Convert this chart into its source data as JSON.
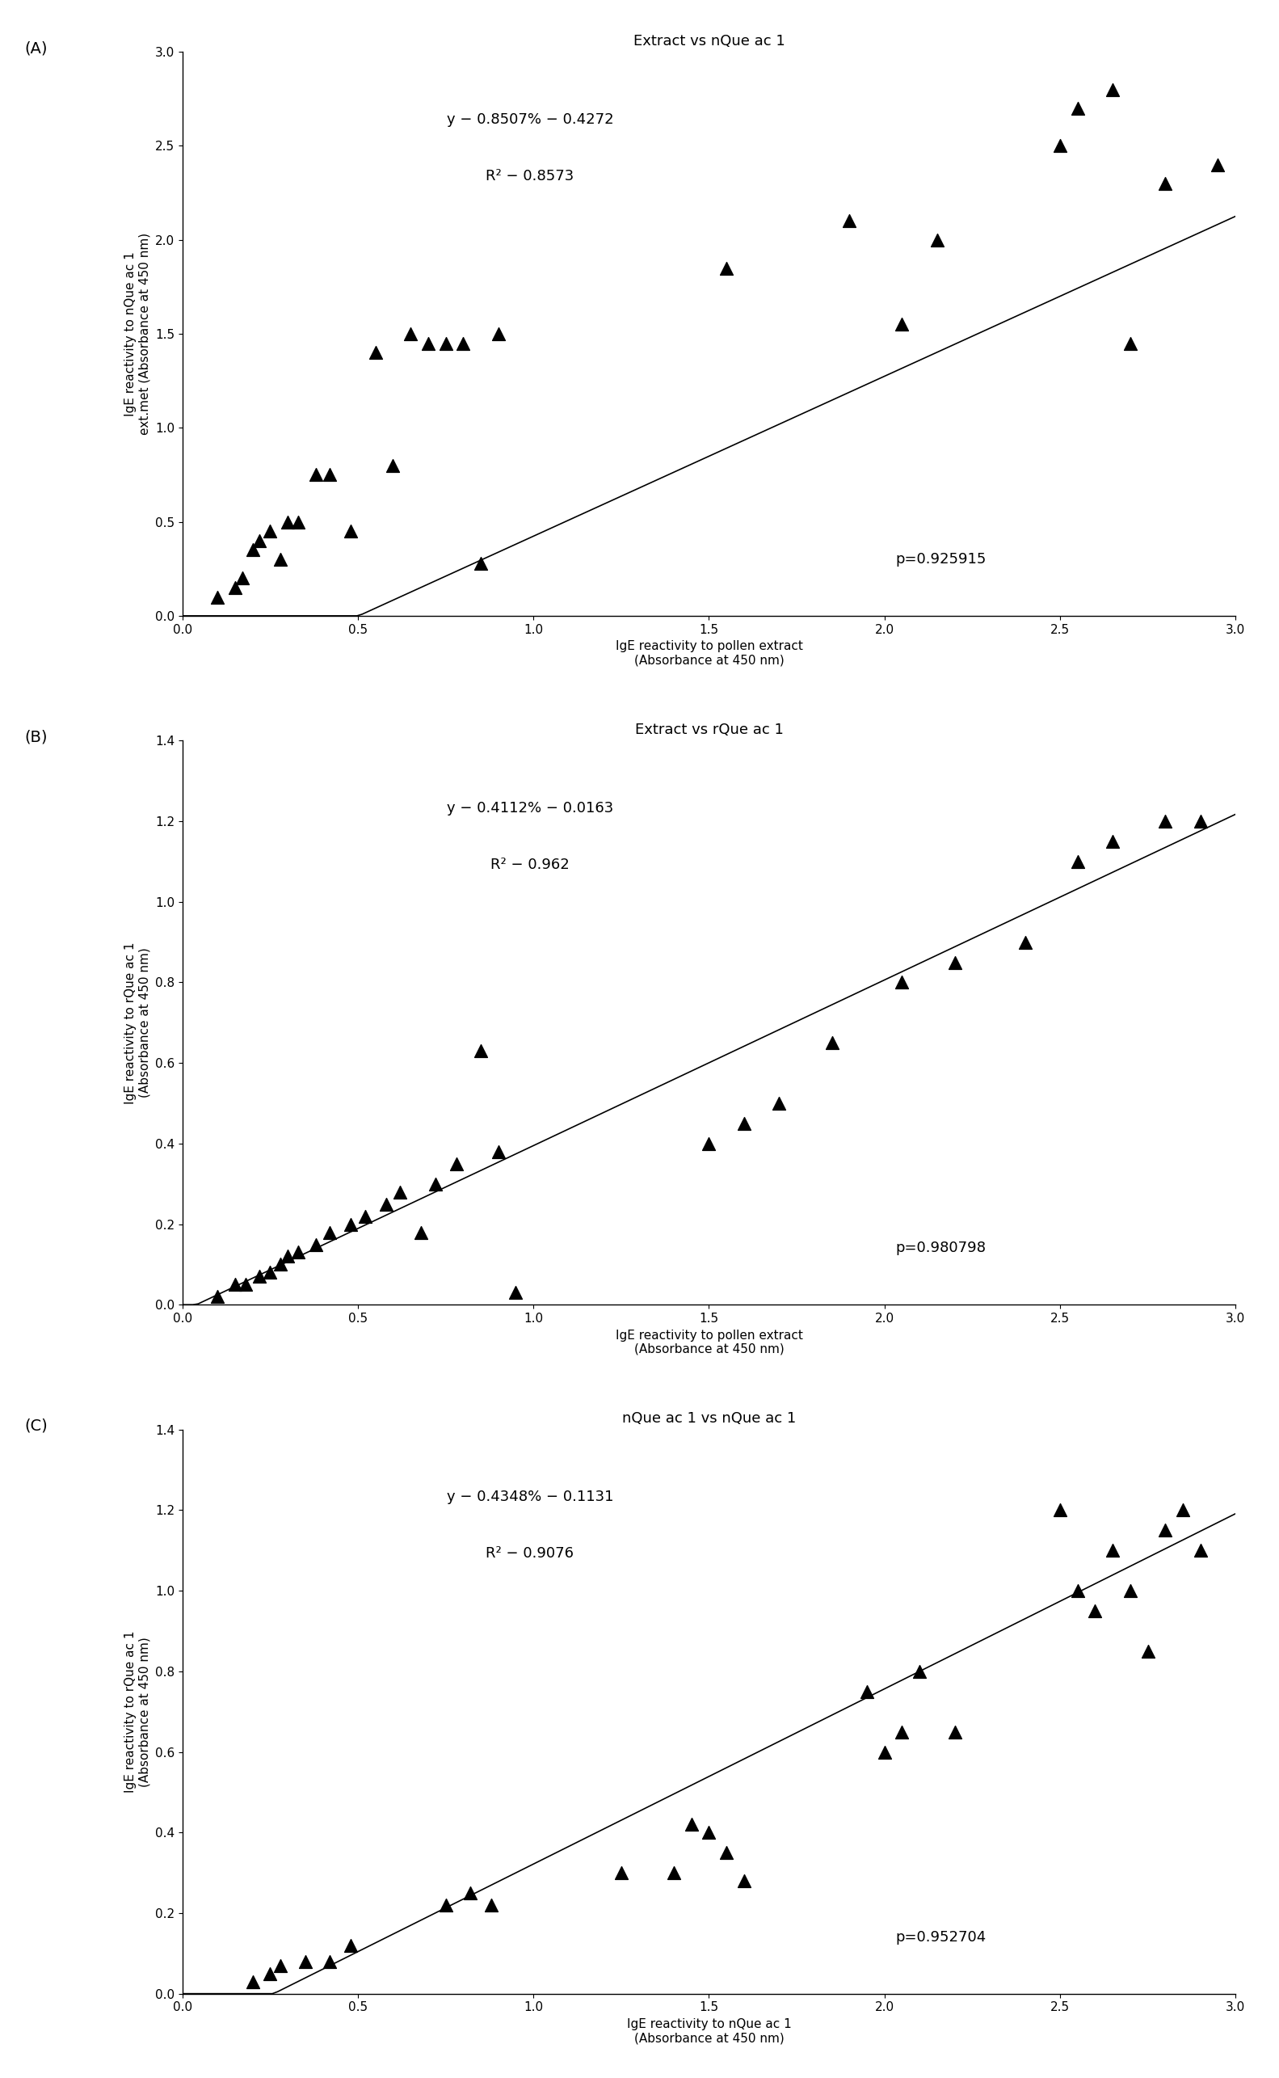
{
  "panel_A": {
    "title": "Extract vs nQue ac 1",
    "xlabel": "IgE reactivity to pollen extract\n(Absorbance at 450 nm)",
    "ylabel": "IgE reactivity to nQue ac 1\next.met (Absorbance at 450 nm)",
    "equation": "y − 0.8507% − 0.4272",
    "r2": "R² − 0.8573",
    "pvalue": "p=0.925915",
    "slope": 0.8507,
    "intercept": -0.4272,
    "xlim": [
      0,
      3
    ],
    "ylim": [
      0,
      3
    ],
    "xticks": [
      0,
      0.5,
      1.0,
      1.5,
      2.0,
      2.5,
      3.0
    ],
    "yticks": [
      0,
      0.5,
      1.0,
      1.5,
      2.0,
      2.5,
      3.0
    ],
    "x_data": [
      0.1,
      0.15,
      0.17,
      0.2,
      0.22,
      0.25,
      0.28,
      0.3,
      0.33,
      0.38,
      0.42,
      0.48,
      0.55,
      0.6,
      0.65,
      0.7,
      0.75,
      0.8,
      0.85,
      0.9,
      1.55,
      1.9,
      2.05,
      2.15,
      2.5,
      2.55,
      2.65,
      2.7,
      2.8,
      2.95
    ],
    "y_data": [
      0.1,
      0.15,
      0.2,
      0.35,
      0.4,
      0.45,
      0.3,
      0.5,
      0.5,
      0.75,
      0.75,
      0.45,
      1.4,
      0.8,
      1.5,
      1.45,
      1.45,
      1.45,
      0.28,
      1.5,
      1.85,
      2.1,
      1.55,
      2.0,
      2.5,
      2.7,
      2.8,
      1.45,
      2.3,
      2.4
    ]
  },
  "panel_B": {
    "title": "Extract vs rQue ac 1",
    "xlabel": "IgE reactivity to pollen extract\n(Absorbance at 450 nm)",
    "ylabel": "IgE reactivity to rQue ac 1\n(Absorbance at 450 nm)",
    "equation": "y − 0.4112% − 0.0163",
    "r2": "R² − 0.962",
    "pvalue": "p=0.980798",
    "slope": 0.4112,
    "intercept": -0.0163,
    "xlim": [
      0,
      3
    ],
    "ylim": [
      0,
      1.4
    ],
    "xticks": [
      0,
      0.5,
      1.0,
      1.5,
      2.0,
      2.5,
      3.0
    ],
    "yticks": [
      0,
      0.2,
      0.4,
      0.6,
      0.8,
      1.0,
      1.2,
      1.4
    ],
    "x_data": [
      0.1,
      0.15,
      0.18,
      0.22,
      0.25,
      0.28,
      0.3,
      0.33,
      0.38,
      0.42,
      0.48,
      0.52,
      0.58,
      0.62,
      0.68,
      0.72,
      0.78,
      0.85,
      0.9,
      0.95,
      1.5,
      1.6,
      1.7,
      1.85,
      2.05,
      2.2,
      2.4,
      2.55,
      2.65,
      2.8,
      2.9
    ],
    "y_data": [
      0.02,
      0.05,
      0.05,
      0.07,
      0.08,
      0.1,
      0.12,
      0.13,
      0.15,
      0.18,
      0.2,
      0.22,
      0.25,
      0.28,
      0.18,
      0.3,
      0.35,
      0.63,
      0.38,
      0.03,
      0.4,
      0.45,
      0.5,
      0.65,
      0.8,
      0.85,
      0.9,
      1.1,
      1.15,
      1.2,
      1.2
    ]
  },
  "panel_C": {
    "title": "nQue ac 1 vs nQue ac 1",
    "xlabel": "IgE reactivity to nQue ac 1\n(Absorbance at 450 nm)",
    "ylabel": "IgE reactivity to rQue ac 1\n(Absorbance at 450 nm)",
    "equation": "y − 0.4348% − 0.1131",
    "r2": "R² − 0.9076",
    "pvalue": "p=0.952704",
    "slope": 0.4348,
    "intercept": -0.1131,
    "xlim": [
      0,
      3
    ],
    "ylim": [
      0,
      1.4
    ],
    "xticks": [
      0,
      0.5,
      1.0,
      1.5,
      2.0,
      2.5,
      3.0
    ],
    "yticks": [
      0,
      0.2,
      0.4,
      0.6,
      0.8,
      1.0,
      1.2,
      1.4
    ],
    "x_data": [
      0.2,
      0.25,
      0.28,
      0.35,
      0.42,
      0.48,
      0.75,
      0.82,
      0.88,
      1.25,
      1.4,
      1.45,
      1.5,
      1.55,
      1.6,
      1.95,
      2.0,
      2.05,
      2.1,
      2.2,
      2.5,
      2.55,
      2.6,
      2.65,
      2.7,
      2.75,
      2.8,
      2.85,
      2.9
    ],
    "y_data": [
      0.03,
      0.05,
      0.07,
      0.08,
      0.08,
      0.12,
      0.22,
      0.25,
      0.22,
      0.3,
      0.3,
      0.42,
      0.4,
      0.35,
      0.28,
      0.75,
      0.6,
      0.65,
      0.8,
      0.65,
      1.2,
      1.0,
      0.95,
      1.1,
      1.0,
      0.85,
      1.15,
      1.2,
      1.1
    ]
  },
  "panel_labels": [
    "(A)",
    "(B)",
    "(C)"
  ],
  "marker_color": "black",
  "line_color": "black",
  "background_color": "white",
  "fontsize_title": 13,
  "fontsize_label": 11,
  "fontsize_tick": 11,
  "fontsize_annot": 13,
  "fontsize_panel_label": 14
}
